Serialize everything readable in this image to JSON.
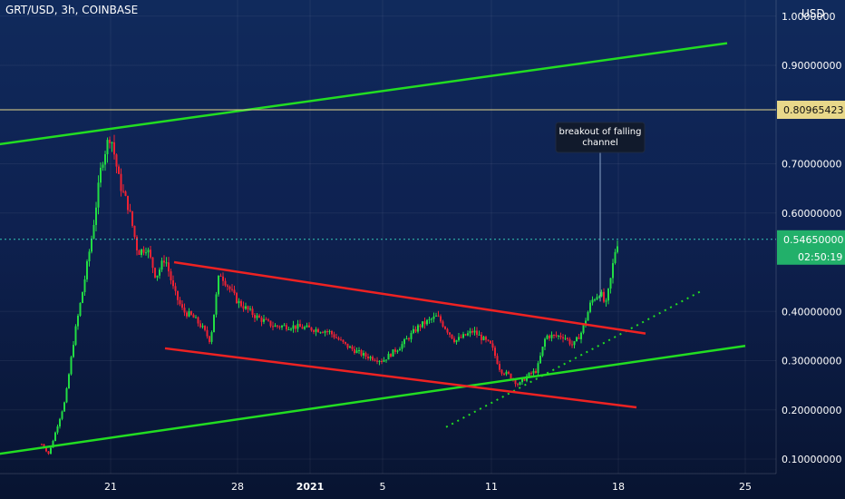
{
  "symbol_title": "GRT/USD, 3h, COINBASE",
  "currency": "USD",
  "chart_data": {
    "type": "candlestick",
    "title": "GRT/USD, 3h, COINBASE",
    "y_axis": {
      "range": [
        0.08,
        1.02
      ],
      "ticks": [
        {
          "value": 1.0,
          "label": "1.0000000"
        },
        {
          "value": 0.9,
          "label": "0.90000000"
        },
        {
          "value": 0.7,
          "label": "0.70000000"
        },
        {
          "value": 0.6,
          "label": "0.60000000"
        },
        {
          "value": 0.4,
          "label": "0.40000000"
        },
        {
          "value": 0.3,
          "label": "0.30000000"
        },
        {
          "value": 0.2,
          "label": "0.20000000"
        },
        {
          "value": 0.1,
          "label": "0.10000000"
        }
      ]
    },
    "x_axis": {
      "range": [
        "Dec 17",
        "Jan 26"
      ],
      "ticks": [
        {
          "day": 21,
          "label": "21"
        },
        {
          "day": 28,
          "label": "28"
        },
        {
          "day": 32,
          "label": "2021"
        },
        {
          "day": 36,
          "label": "5"
        },
        {
          "day": 42,
          "label": "11"
        },
        {
          "day": 49,
          "label": "18"
        },
        {
          "day": 56,
          "label": "25"
        }
      ]
    },
    "price_path": [
      [
        "Dec 17.2",
        0.13
      ],
      [
        "Dec 17.6",
        0.11
      ],
      [
        "Dec 18",
        0.16
      ],
      [
        "Dec 18.5",
        0.22
      ],
      [
        "Dec 19",
        0.35
      ],
      [
        "Dec 19.5",
        0.45
      ],
      [
        "Dec 20",
        0.56
      ],
      [
        "Dec 20.5",
        0.7
      ],
      [
        "Dec 20.8",
        0.74
      ],
      [
        "Dec 21",
        0.76
      ],
      [
        "Dec 21.2",
        0.72
      ],
      [
        "Dec 21.5",
        0.66
      ],
      [
        "Dec 22",
        0.61
      ],
      [
        "Dec 22.5",
        0.52
      ],
      [
        "Dec 23",
        0.53
      ],
      [
        "Dec 23.5",
        0.47
      ],
      [
        "Dec 24",
        0.51
      ],
      [
        "Dec 24.5",
        0.44
      ],
      [
        "Dec 25",
        0.4
      ],
      [
        "Dec 25.5",
        0.39
      ],
      [
        "Dec 26",
        0.37
      ],
      [
        "Dec 26.5",
        0.34
      ],
      [
        "Dec 27",
        0.48
      ],
      [
        "Dec 27.5",
        0.45
      ],
      [
        "Dec 28",
        0.42
      ],
      [
        "Dec 29",
        0.39
      ],
      [
        "Dec 30",
        0.37
      ],
      [
        "Dec 31",
        0.37
      ],
      [
        "Jan 1",
        0.365
      ],
      [
        "Jan 2",
        0.36
      ],
      [
        "Jan 3",
        0.33
      ],
      [
        "Jan 4",
        0.31
      ],
      [
        "Jan 5",
        0.3
      ],
      [
        "Jan 6",
        0.33
      ],
      [
        "Jan 7",
        0.37
      ],
      [
        "Jan 8",
        0.39
      ],
      [
        "Jan 9",
        0.34
      ],
      [
        "Jan 10",
        0.36
      ],
      [
        "Jan 11",
        0.33
      ],
      [
        "Jan 11.5",
        0.28
      ],
      [
        "Jan 12",
        0.27
      ],
      [
        "Jan 12.5",
        0.25
      ],
      [
        "Jan 13",
        0.27
      ],
      [
        "Jan 13.5",
        0.28
      ],
      [
        "Jan 14",
        0.35
      ],
      [
        "Jan 15",
        0.35
      ],
      [
        "Jan 15.5",
        0.33
      ],
      [
        "Jan 16",
        0.36
      ],
      [
        "Jan 16.5",
        0.42
      ],
      [
        "Jan 17",
        0.44
      ],
      [
        "Jan 17.3",
        0.41
      ],
      [
        "Jan 17.6",
        0.47
      ],
      [
        "Jan 17.8",
        0.52
      ],
      [
        "Jan 18",
        0.5465
      ]
    ],
    "lines": [
      {
        "color": "#22dd22",
        "style": "solid",
        "from": {
          "day": 11,
          "price": 0.72
        },
        "to": {
          "day": 55,
          "price": 0.945
        }
      },
      {
        "color": "#22dd22",
        "style": "solid",
        "from": {
          "day": 11,
          "price": 0.09
        },
        "to": {
          "day": 56,
          "price": 0.33
        }
      },
      {
        "color": "#22dd22",
        "style": "dotted",
        "from": {
          "day": 39.5,
          "price": 0.165
        },
        "to": {
          "day": 53.5,
          "price": 0.44
        }
      },
      {
        "color": "#ee2222",
        "style": "solid",
        "from": {
          "day": 24.5,
          "price": 0.5
        },
        "to": {
          "day": 50.5,
          "price": 0.355
        }
      },
      {
        "color": "#ee2222",
        "style": "solid",
        "from": {
          "day": 24,
          "price": 0.325
        },
        "to": {
          "day": 50,
          "price": 0.205
        }
      }
    ],
    "horizontal_level": {
      "price": 0.80965423,
      "label": "0.80965423",
      "color": "#e8d88a"
    },
    "last_price": {
      "price": 0.5465,
      "label": "0.54650000",
      "countdown": "02:50:19",
      "color": "#22b06a"
    },
    "annotation": {
      "text_lines": [
        "breakout of falling",
        "channel"
      ],
      "anchor_day": 48,
      "anchor_price": 0.42
    }
  }
}
